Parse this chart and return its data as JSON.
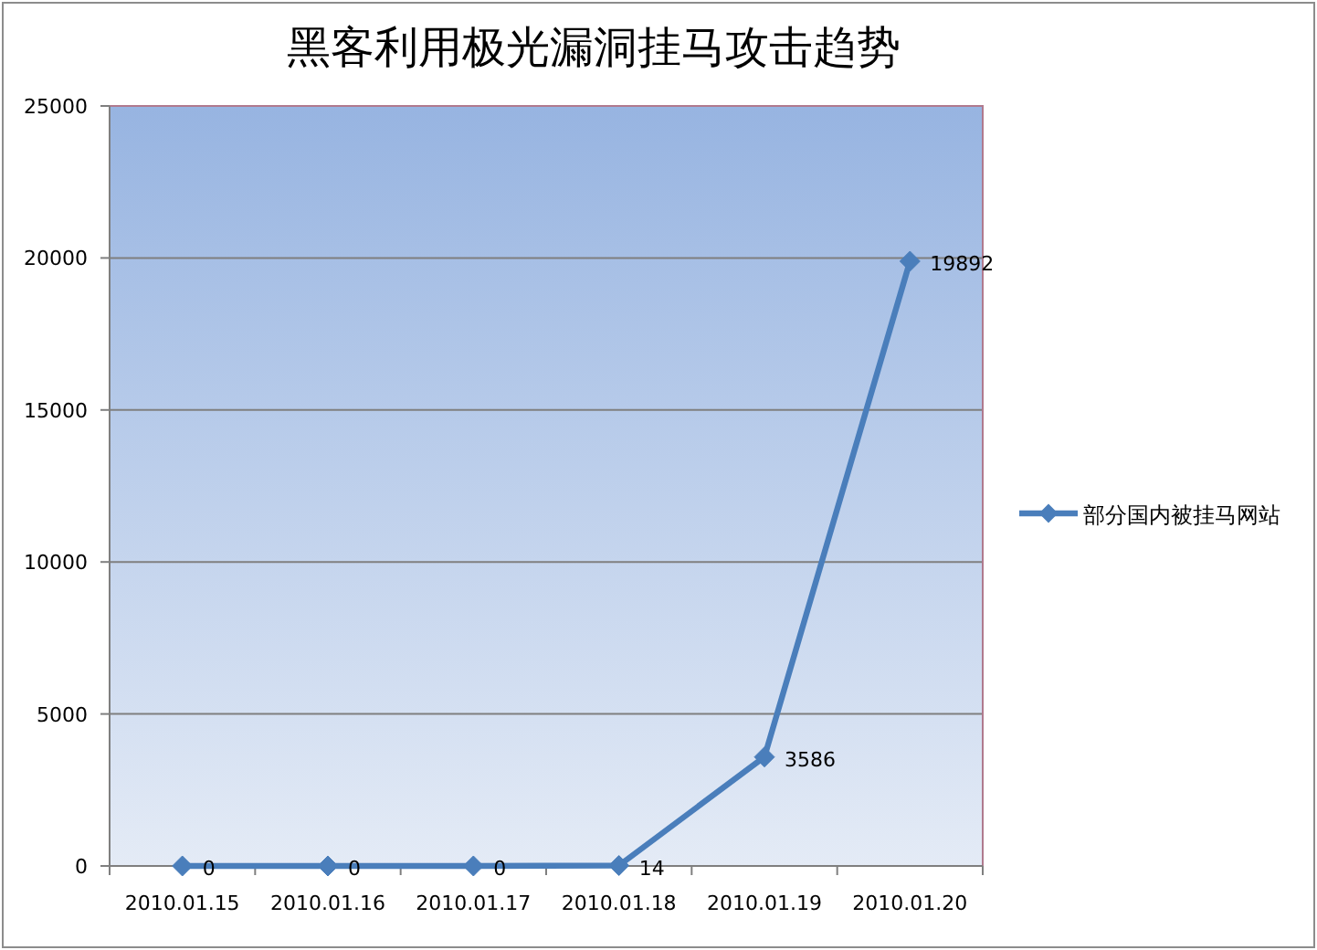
{
  "chart_data": {
    "type": "line",
    "title": "黑客利用极光漏洞挂马攻击趋势",
    "categories": [
      "2010.01.15",
      "2010.01.16",
      "2010.01.17",
      "2010.01.18",
      "2010.01.19",
      "2010.01.20"
    ],
    "series": [
      {
        "name": "部分国内被挂马网站",
        "color": "#4a7ebb",
        "values": [
          0,
          0,
          0,
          14,
          3586,
          19892
        ]
      }
    ],
    "ylim": [
      0,
      25000
    ],
    "yticks": [
      0,
      5000,
      10000,
      15000,
      20000,
      25000
    ],
    "grid": "y",
    "legend": "right",
    "marker": "diamond",
    "line_style": "solid",
    "data_labels": true
  }
}
